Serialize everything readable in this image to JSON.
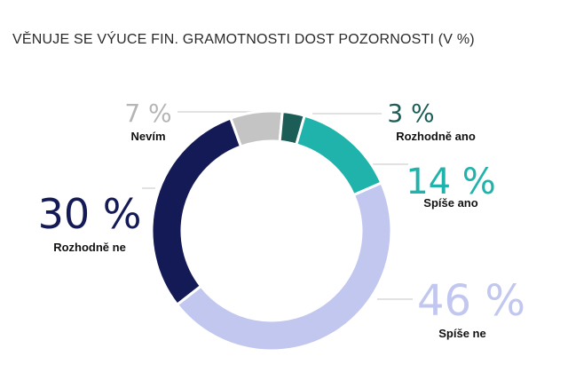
{
  "chart_data": {
    "type": "pie",
    "variant": "donut",
    "title": "VĚNUJE SE VÝUCE FIN. GRAMOTNOSTI DOST POZORNOSTI (V %)",
    "unit": "%",
    "slices": [
      {
        "label": "Nevím",
        "value": 7,
        "value_text": "7 %",
        "color": "#c4c4c4",
        "text_color": "#b5b5b5"
      },
      {
        "label": "Rozhodně ano",
        "value": 3,
        "value_text": "3 %",
        "color": "#1c5e57",
        "text_color": "#1c5e57"
      },
      {
        "label": "Spíše ano",
        "value": 14,
        "value_text": "14 %",
        "color": "#1fb3ab",
        "text_color": "#1fb3ab"
      },
      {
        "label": "Spíše ne",
        "value": 46,
        "value_text": "46 %",
        "color": "#c1c7ef",
        "text_color": "#c1c7ef"
      },
      {
        "label": "Rozhodně ne",
        "value": 30,
        "value_text": "30 %",
        "color": "#131a56",
        "text_color": "#131a56"
      }
    ]
  }
}
